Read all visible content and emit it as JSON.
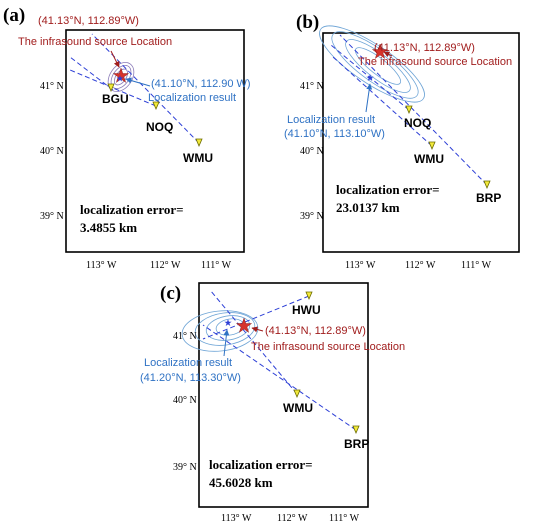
{
  "panels": [
    {
      "letter": "(a)",
      "lat_ticks": [
        "41° N",
        "40° N",
        "39° N"
      ],
      "lon_ticks": [
        "113° W",
        "112° W",
        "111° W"
      ],
      "stations": [
        "BGU",
        "NOQ",
        "WMU"
      ],
      "source_coord": "(41.13°N, 112.89°W)",
      "source_label": "The infrasound source Location",
      "result_coord": "(41.10°N, 112.90 W)",
      "result_label": "Localization result",
      "error_line1": "localization error=",
      "error_line2": "3.4855 km"
    },
    {
      "letter": "(b)",
      "lat_ticks": [
        "41° N",
        "40° N",
        "39° N"
      ],
      "lon_ticks": [
        "113° W",
        "112° W",
        "111° W"
      ],
      "stations": [
        "NOQ",
        "WMU",
        "BRP"
      ],
      "source_coord": "(41.13°N, 112.89°W)",
      "source_label": "The infrasound source Location",
      "result_label": "Localization result",
      "result_coord": "(41.10°N, 113.10°W)",
      "error_line1": "localization error=",
      "error_line2": "23.0137 km"
    },
    {
      "letter": "(c)",
      "lat_ticks": [
        "41° N",
        "40° N",
        "39° N"
      ],
      "lon_ticks": [
        "113° W",
        "112° W",
        "111° W"
      ],
      "stations": [
        "HWU",
        "WMU",
        "BRP"
      ],
      "source_coord": "(41.13°N, 112.89°W)",
      "source_label": "The infrasound source Location",
      "result_label": "Localization result",
      "result_coord": "(41.20°N, 113.30°W)",
      "error_line1": "localization error=",
      "error_line2": "45.6028 km"
    }
  ],
  "colors": {
    "frame": "#000000",
    "bearing_line": "#2d3fd6",
    "contour": "#6fa5d6",
    "station_fill": "#f2e93a",
    "source_star": "#d6332b",
    "result_star": "#2d3fd6",
    "source_text": "#a11d1d",
    "result_text": "#2f72c4"
  }
}
